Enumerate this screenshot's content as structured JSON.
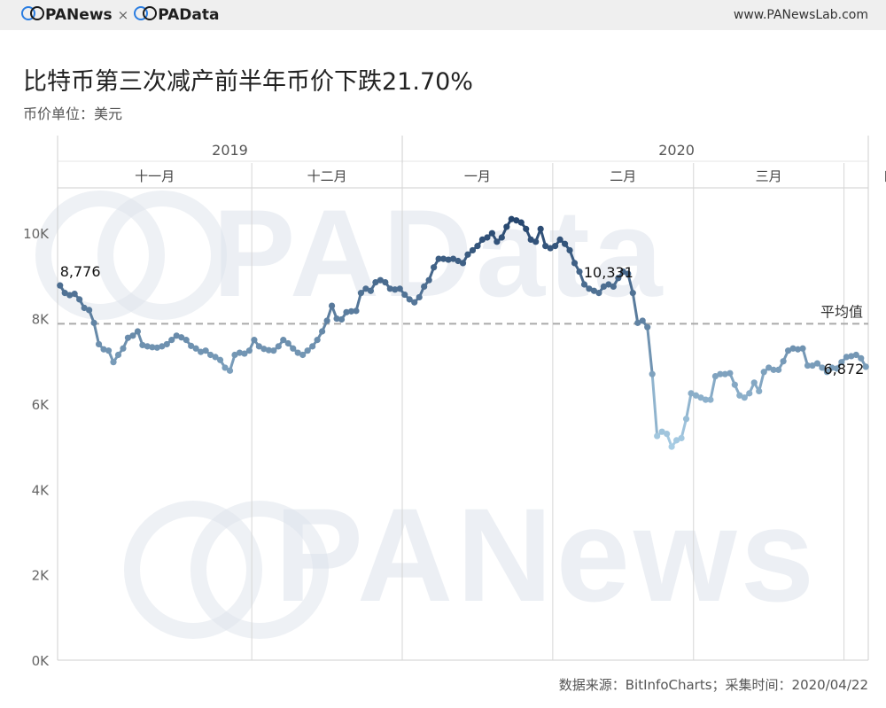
{
  "header": {
    "brand_left": "PANews",
    "brand_sep": "×",
    "brand_right": "PAData",
    "site": "www.PANewsLab.com"
  },
  "watermark": {
    "top": "PAData",
    "bottom": "PANews"
  },
  "footer": {
    "source": "数据来源：BitInfoCharts；采集时间：2020/04/22"
  },
  "chart_data": {
    "type": "line",
    "title": "比特币第三次减产前半年币价下跌21.70%",
    "subtitle": "币价单位：美元",
    "ylabel": "",
    "ylim": [
      0,
      11000
    ],
    "yticks": [
      0,
      2000,
      4000,
      6000,
      8000,
      10000
    ],
    "ytick_labels": [
      "0K",
      "2K",
      "4K",
      "6K",
      "8K",
      "10K"
    ],
    "years": [
      {
        "label": "2019",
        "start": "2019-10-22",
        "end": "2020-01-01"
      },
      {
        "label": "2020",
        "start": "2020-01-01",
        "end": "2020-04-23"
      }
    ],
    "months": [
      {
        "label": "十一月",
        "start": "2019-10-22",
        "end": "2019-12-01"
      },
      {
        "label": "十二月",
        "start": "2019-12-01",
        "end": "2020-01-01"
      },
      {
        "label": "一月",
        "start": "2020-01-01",
        "end": "2020-02-01"
      },
      {
        "label": "二月",
        "start": "2020-02-01",
        "end": "2020-03-01"
      },
      {
        "label": "三月",
        "start": "2020-03-01",
        "end": "2020-04-01"
      },
      {
        "label": "四月",
        "start": "2020-04-01",
        "end": "2020-04-23"
      }
    ],
    "average": {
      "label": "平均值",
      "value": 7880
    },
    "annotations": [
      {
        "date": "2019-10-22",
        "label": "8,776"
      },
      {
        "date": "2020-02-12",
        "label": "10,331"
      },
      {
        "date": "2020-04-22",
        "label": "6,872"
      }
    ],
    "start_date": "2019-10-22",
    "values": [
      8776,
      8600,
      8550,
      8580,
      8450,
      8250,
      8200,
      7900,
      7400,
      7280,
      7250,
      6980,
      7150,
      7300,
      7550,
      7600,
      7700,
      7380,
      7350,
      7330,
      7320,
      7350,
      7400,
      7500,
      7600,
      7560,
      7500,
      7360,
      7300,
      7220,
      7250,
      7150,
      7100,
      7030,
      6850,
      6780,
      7150,
      7200,
      7180,
      7250,
      7500,
      7350,
      7290,
      7260,
      7250,
      7350,
      7500,
      7420,
      7300,
      7200,
      7150,
      7250,
      7350,
      7500,
      7700,
      7950,
      8300,
      8000,
      7980,
      8150,
      8170,
      8180,
      8600,
      8700,
      8650,
      8850,
      8900,
      8850,
      8700,
      8680,
      8700,
      8560,
      8450,
      8380,
      8500,
      8750,
      8900,
      9200,
      9400,
      9400,
      9380,
      9400,
      9350,
      9300,
      9500,
      9600,
      9700,
      9850,
      9900,
      10000,
      9800,
      9900,
      10150,
      10331,
      10300,
      10250,
      10100,
      9850,
      9800,
      10100,
      9700,
      9650,
      9700,
      9850,
      9750,
      9600,
      9300,
      9100,
      8800,
      8700,
      8650,
      8600,
      8750,
      8800,
      8750,
      8950,
      9100,
      9050,
      8600,
      7900,
      7950,
      7800,
      6700,
      5250,
      5350,
      5300,
      5000,
      5150,
      5200,
      5650,
      6250,
      6200,
      6150,
      6100,
      6100,
      6650,
      6700,
      6700,
      6720,
      6450,
      6200,
      6150,
      6250,
      6500,
      6300,
      6750,
      6850,
      6800,
      6800,
      7000,
      7250,
      7300,
      7280,
      7300,
      6900,
      6900,
      6950,
      6850,
      6750,
      6850,
      6830,
      6980,
      7100,
      7120,
      7150,
      7070,
      6872
    ]
  }
}
